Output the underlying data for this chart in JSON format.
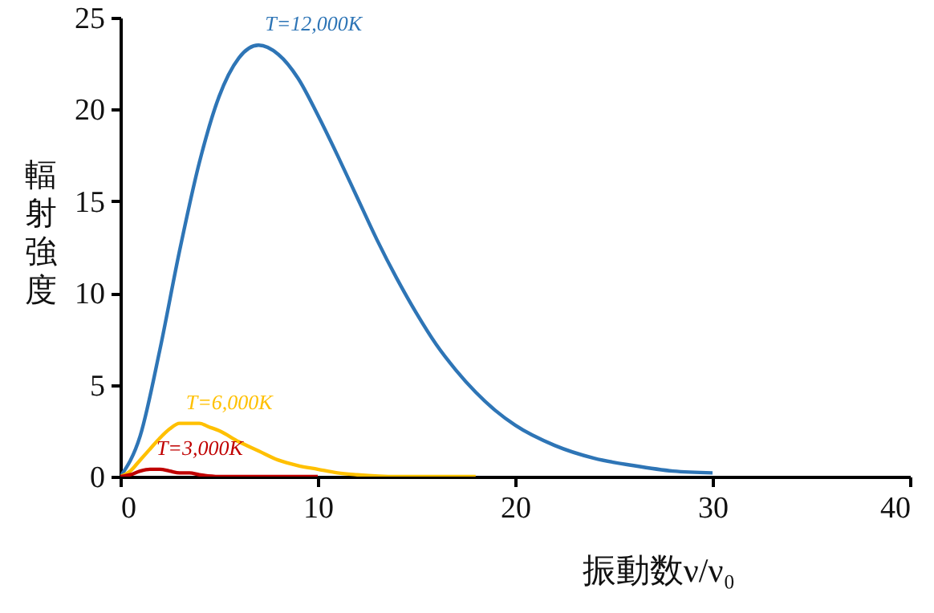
{
  "chart_data": {
    "type": "line",
    "xlabel": "振動数ν/ν₀",
    "ylabel": "輻射強度",
    "xlim": [
      0,
      40
    ],
    "ylim": [
      0,
      25
    ],
    "xticks": [
      0,
      10,
      20,
      30,
      40
    ],
    "yticks": [
      0,
      5,
      10,
      15,
      20,
      25
    ],
    "grid": false,
    "marker": "none",
    "line_style": "solid",
    "series": [
      {
        "name": "T=12,000K",
        "color": "#2e75b6",
        "x": [
          0,
          1,
          2,
          3,
          4,
          5,
          6,
          7,
          8,
          9,
          10,
          11,
          12,
          13,
          14,
          15,
          16,
          17,
          18,
          19,
          20,
          22,
          24,
          26,
          28,
          30
        ],
        "values": [
          0,
          2.2,
          6.9,
          12.3,
          17.1,
          20.7,
          22.8,
          23.5,
          23.0,
          21.7,
          19.7,
          17.5,
          15.2,
          12.9,
          10.8,
          8.9,
          7.2,
          5.8,
          4.6,
          3.6,
          2.8,
          1.7,
          1.0,
          0.6,
          0.3,
          0.2
        ]
      },
      {
        "name": "T=6,000K",
        "color": "#ffc000",
        "x": [
          0,
          0.5,
          1,
          1.5,
          2,
          2.5,
          3,
          3.5,
          4,
          4.5,
          5,
          6,
          7,
          8,
          9,
          10,
          11,
          12,
          14,
          16,
          18
        ],
        "values": [
          0,
          0.3,
          0.9,
          1.5,
          2.1,
          2.6,
          2.9,
          2.9,
          2.9,
          2.7,
          2.5,
          1.9,
          1.4,
          0.9,
          0.6,
          0.4,
          0.2,
          0.1,
          0,
          0,
          0
        ]
      },
      {
        "name": "T=3,000K",
        "color": "#c00000",
        "x": [
          0,
          0.5,
          1,
          1.5,
          2,
          2.5,
          3,
          3.5,
          4,
          5,
          6,
          8,
          10
        ],
        "values": [
          0,
          0.1,
          0.3,
          0.4,
          0.4,
          0.3,
          0.2,
          0.2,
          0.1,
          0,
          0,
          0,
          0
        ]
      }
    ]
  }
}
